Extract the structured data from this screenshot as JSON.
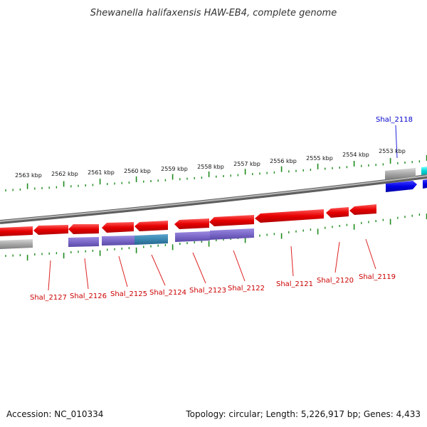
{
  "title": "Shewanella halifaxensis HAW-EB4, complete genome",
  "accession": "Accession: NC_010334",
  "summary": "Topology: circular; Length: 5,226,917 bp; Genes: 4,433",
  "ticks": [
    "2563 kbp",
    "2562 kbp",
    "2561 kbp",
    "2560 kbp",
    "2559 kbp",
    "2558 kbp",
    "2557 kbp",
    "2556 kbp",
    "2555 kbp",
    "2554 kbp",
    "2553 kbp"
  ],
  "gene_labels": [
    "Shal_2127",
    "Shal_2126",
    "Shal_2125",
    "Shal_2124",
    "Shal_2123",
    "Shal_2122",
    "Shal_2121",
    "Shal_2120",
    "Shal_2119",
    "Shal_2118"
  ],
  "colors": {
    "reverse_cds": "#e60000",
    "reverse_label": "#cc0000",
    "forward_cds": "#0000e6",
    "forward_label": "#0000cc",
    "purple_feature": "#7b68c8",
    "teal_feature": "#3a86b0",
    "gray_feature": "#a8a8a8",
    "cyan_feature": "#00d8d8",
    "backbone": "#8a8a8a",
    "ruler": "#1e8c1e"
  }
}
